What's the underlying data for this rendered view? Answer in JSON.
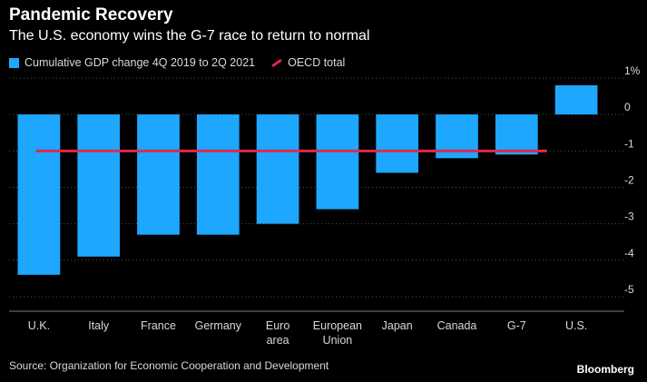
{
  "chart_data": {
    "type": "bar",
    "title": "Pandemic Recovery",
    "subtitle": "The U.S. economy wins the G-7 race to return to normal",
    "categories": [
      "U.K.",
      "Italy",
      "France",
      "Germany",
      "Euro area",
      "European Union",
      "Japan",
      "Canada",
      "G-7",
      "U.S."
    ],
    "category_lines": [
      [
        "U.K."
      ],
      [
        "Italy"
      ],
      [
        "France"
      ],
      [
        "Germany"
      ],
      [
        "Euro",
        "area"
      ],
      [
        "European",
        "Union"
      ],
      [
        "Japan"
      ],
      [
        "Canada"
      ],
      [
        "G-7"
      ],
      [
        "U.S."
      ]
    ],
    "series": [
      {
        "name": "Cumulative GDP change 4Q 2019 to 2Q 2021",
        "values": [
          -4.4,
          -3.9,
          -3.3,
          -3.3,
          -3.0,
          -2.6,
          -1.6,
          -1.2,
          -1.1,
          0.8
        ]
      }
    ],
    "reference_line": {
      "name": "OECD total",
      "value": -1.0
    },
    "ylim": [
      -5.4,
      1.0
    ],
    "yticks": [
      {
        "value": 1,
        "label": "1%"
      },
      {
        "value": 0,
        "label": "0"
      },
      {
        "value": -1,
        "label": "-1"
      },
      {
        "value": -2,
        "label": "-2"
      },
      {
        "value": -3,
        "label": "-3"
      },
      {
        "value": -4,
        "label": "-4"
      },
      {
        "value": -5,
        "label": "-5"
      }
    ],
    "grid": true,
    "legend_position": "top-left",
    "colors": {
      "bar": "#1ea7ff",
      "reference": "#e0294a",
      "background": "#000000"
    }
  },
  "footer": {
    "source": "Source: Organization for Economic Cooperation and Development",
    "brand": "Bloomberg"
  }
}
